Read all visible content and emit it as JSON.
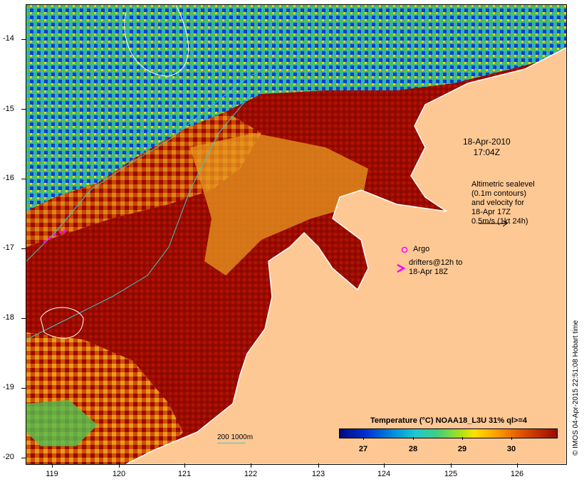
{
  "map": {
    "y_ticks": [
      "-14",
      "-15",
      "-16",
      "-17",
      "-18",
      "-19",
      "-20"
    ],
    "x_ticks": [
      "119",
      "120",
      "121",
      "122",
      "123",
      "124",
      "125",
      "126"
    ],
    "date_line1": "18-Apr-2010",
    "date_line2": "17:04Z",
    "altimetry_lines": [
      "Altimetric sealevel",
      "(0.1m contours)",
      "and velocity for",
      "18-Apr 17Z",
      "0.5m/s (1kt 24h)"
    ],
    "argo_label": "Argo",
    "drifter_lines": [
      "drifters@12h to",
      "18-Apr 18Z"
    ],
    "scale_label": "200  1000m",
    "credit": "© IMOS 04-Apr-2015 22:51:08 Hobart time",
    "colorbar_title": "Temperature (°C) NOAA18_L3U 31% ql>=4",
    "colorbar_ticks": [
      "27",
      "28",
      "29",
      "30"
    ],
    "colors": {
      "land": "#fdc894",
      "sst_hot": "#9a0a00",
      "sst_warm": "#d05000",
      "sst_orange": "#e89a20",
      "sst_yellow": "#ffd000",
      "sst_green": "#50c050",
      "sst_cyan": "#2ab0c8",
      "sst_blue": "#1040c0",
      "isobath": "#3cc8c8",
      "argo": "#ff00ff"
    },
    "icons": {
      "argo": "circle-icon",
      "drifter": "chevron-right-icon",
      "velocity": "arrow-right-icon"
    }
  }
}
